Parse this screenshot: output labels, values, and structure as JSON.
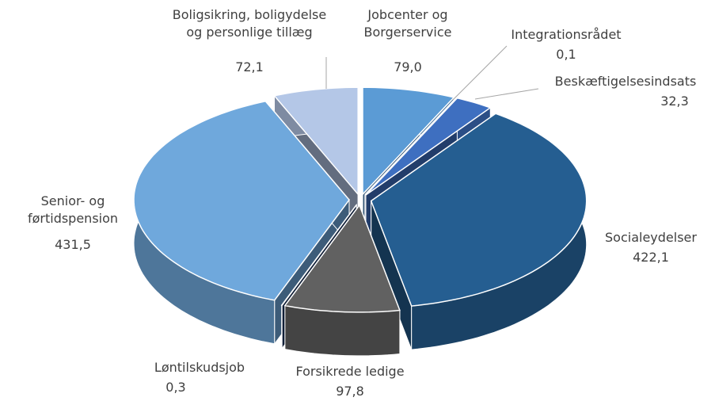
{
  "chart_data": {
    "type": "pie3d",
    "categories": [
      "Jobcenter og\nBorgerservice",
      "Integrationsrådet",
      "Beskæftigelsesindsats",
      "Socialeydelser",
      "Forsikrede ledige",
      "Løntilskudsjob",
      "Senior- og\nførtidspension",
      "Boligsikring, boligydelse\nog personlige tillæg"
    ],
    "values": [
      79.0,
      0.1,
      32.3,
      422.1,
      97.8,
      0.3,
      431.5,
      72.1
    ],
    "value_labels": [
      "79,0",
      "0,1",
      "32,3",
      "422,1",
      "97,8",
      "0,3",
      "431,5",
      "72,1"
    ],
    "colors": [
      "#5b9bd5",
      "#4472c4",
      "#3e6fc0",
      "#255e91",
      "#616161",
      "#1f3864",
      "#6fa8dc",
      "#b4c7e7"
    ]
  }
}
